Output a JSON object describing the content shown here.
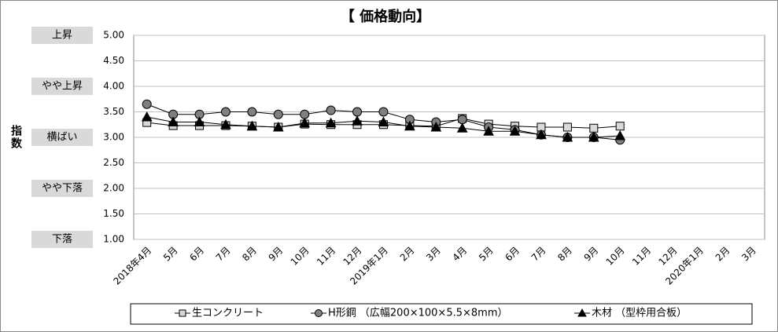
{
  "chart_data": {
    "type": "line",
    "title": "【 価格動向】",
    "y_label": "指数",
    "categories": [
      "2018年4月",
      "5月",
      "6月",
      "7月",
      "8月",
      "9月",
      "10月",
      "11月",
      "12月",
      "2019年1月",
      "2月",
      "3月",
      "4月",
      "5月",
      "6月",
      "7月",
      "8月",
      "9月",
      "10月",
      "11月",
      "12月",
      "2020年1月",
      "2月",
      "3月"
    ],
    "series": [
      {
        "name": "生コンクリート",
        "color": "#000000",
        "marker": "square",
        "marker_color": "#d9d9d9",
        "values": [
          3.29,
          3.23,
          3.23,
          3.23,
          3.22,
          3.2,
          3.26,
          3.25,
          3.25,
          3.25,
          3.23,
          3.22,
          3.37,
          3.26,
          3.22,
          3.2,
          3.2,
          3.18,
          3.22,
          null,
          null,
          null,
          null,
          null
        ]
      },
      {
        "name": "H形鋼 （広幅200×100×5.5×8mm）",
        "color": "#000000",
        "marker": "circle",
        "marker_color": "#808080",
        "values": [
          3.65,
          3.45,
          3.45,
          3.5,
          3.5,
          3.45,
          3.45,
          3.53,
          3.5,
          3.5,
          3.35,
          3.3,
          3.35,
          3.2,
          3.15,
          3.05,
          3.0,
          3.0,
          2.95,
          null,
          null,
          null,
          null,
          null
        ]
      },
      {
        "name": "木材 （型枠用合板）",
        "color": "#000000",
        "marker": "triangle",
        "marker_color": "#000000",
        "values": [
          3.4,
          3.3,
          3.3,
          3.25,
          3.22,
          3.2,
          3.28,
          3.28,
          3.32,
          3.3,
          3.22,
          3.2,
          3.18,
          3.12,
          3.12,
          3.05,
          3.0,
          3.0,
          3.03,
          null,
          null,
          null,
          null,
          null
        ]
      }
    ],
    "ylim": [
      1,
      5
    ],
    "yticks": [
      {
        "value": 1,
        "label": "1.00"
      },
      {
        "value": 1.5,
        "label": "1.50"
      },
      {
        "value": 2,
        "label": "2.00"
      },
      {
        "value": 2.5,
        "label": "2.50"
      },
      {
        "value": 3,
        "label": "3.00"
      },
      {
        "value": 3.5,
        "label": "3.50"
      },
      {
        "value": 4,
        "label": "4.00"
      },
      {
        "value": 4.5,
        "label": "4.50"
      },
      {
        "value": 5,
        "label": "5.00"
      }
    ],
    "level_labels": [
      {
        "value": 5,
        "label": "上昇"
      },
      {
        "value": 4,
        "label": "やや上昇"
      },
      {
        "value": 3,
        "label": "横ばい"
      },
      {
        "value": 2,
        "label": "やや下落"
      },
      {
        "value": 1,
        "label": "下落"
      }
    ],
    "grid": true,
    "legend": "bottom"
  }
}
